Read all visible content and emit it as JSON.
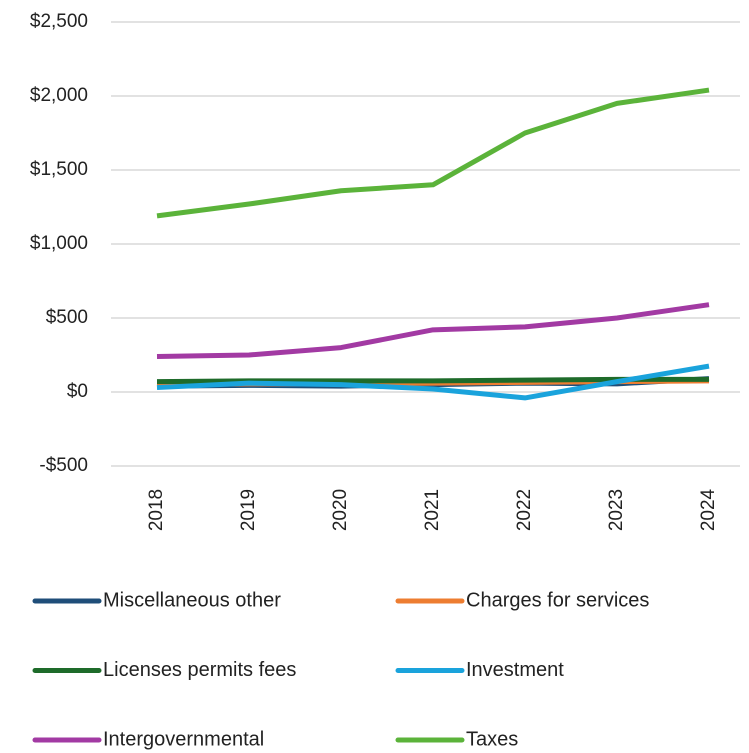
{
  "chart_data": {
    "type": "line",
    "categories": [
      "2018",
      "2019",
      "2020",
      "2021",
      "2022",
      "2023",
      "2024"
    ],
    "series": [
      {
        "name": "Miscellaneous other",
        "color": "#1f4e79",
        "values": [
          40,
          45,
          40,
          50,
          60,
          55,
          90
        ]
      },
      {
        "name": "Charges for services",
        "color": "#ed7d31",
        "values": [
          50,
          55,
          55,
          60,
          65,
          70,
          75
        ]
      },
      {
        "name": "Licenses permits fees",
        "color": "#1e6b2a",
        "values": [
          70,
          75,
          75,
          75,
          80,
          85,
          85
        ]
      },
      {
        "name": "Investment",
        "color": "#1aa3dc",
        "values": [
          30,
          60,
          50,
          20,
          -40,
          70,
          175
        ]
      },
      {
        "name": "Intergovernmental",
        "color": "#a23aa3",
        "values": [
          240,
          250,
          300,
          420,
          440,
          500,
          590
        ]
      },
      {
        "name": "Taxes",
        "color": "#5bb33a",
        "values": [
          1190,
          1270,
          1360,
          1400,
          1750,
          1950,
          2040
        ]
      }
    ],
    "ylim": [
      -500,
      2500
    ],
    "yticks": [
      {
        "value": -500,
        "label": "-$500"
      },
      {
        "value": 0,
        "label": "$0"
      },
      {
        "value": 500,
        "label": "$500"
      },
      {
        "value": 1000,
        "label": "$1,000"
      },
      {
        "value": 1500,
        "label": "$1,500"
      },
      {
        "value": 2000,
        "label": "$2,000"
      },
      {
        "value": 2500,
        "label": "$2,500"
      }
    ],
    "grid": true,
    "legend": "bottom"
  }
}
